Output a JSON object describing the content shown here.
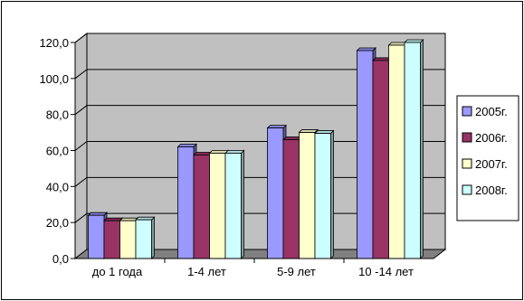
{
  "chart_data": {
    "type": "bar",
    "three_d": true,
    "title": "",
    "xlabel": "",
    "ylabel": "",
    "categories": [
      "до 1 года",
      "1-4 лет",
      "5-9 лет",
      "10 -14 лет"
    ],
    "series": [
      {
        "name": "2005г.",
        "color": "#9999ff",
        "values": [
          24.0,
          62.0,
          72.5,
          115.5
        ]
      },
      {
        "name": "2006г.",
        "color": "#993366",
        "values": [
          21.0,
          57.5,
          66.0,
          110.0
        ]
      },
      {
        "name": "2007г.",
        "color": "#ffffcc",
        "values": [
          21.0,
          58.5,
          70.0,
          118.5
        ]
      },
      {
        "name": "2008г.",
        "color": "#ccffff",
        "values": [
          21.5,
          58.5,
          69.5,
          120.0
        ]
      }
    ],
    "ylim": [
      0,
      120
    ],
    "yticks": [
      "0,0",
      "20,0",
      "40,0",
      "60,0",
      "80,0",
      "100,0",
      "120,0"
    ],
    "grid": true,
    "legend_position": "right",
    "colors": {
      "plot_wall": "#c0c0c0",
      "plot_floor": "#808080",
      "gridline": "#000000",
      "outline": "#000000"
    }
  }
}
